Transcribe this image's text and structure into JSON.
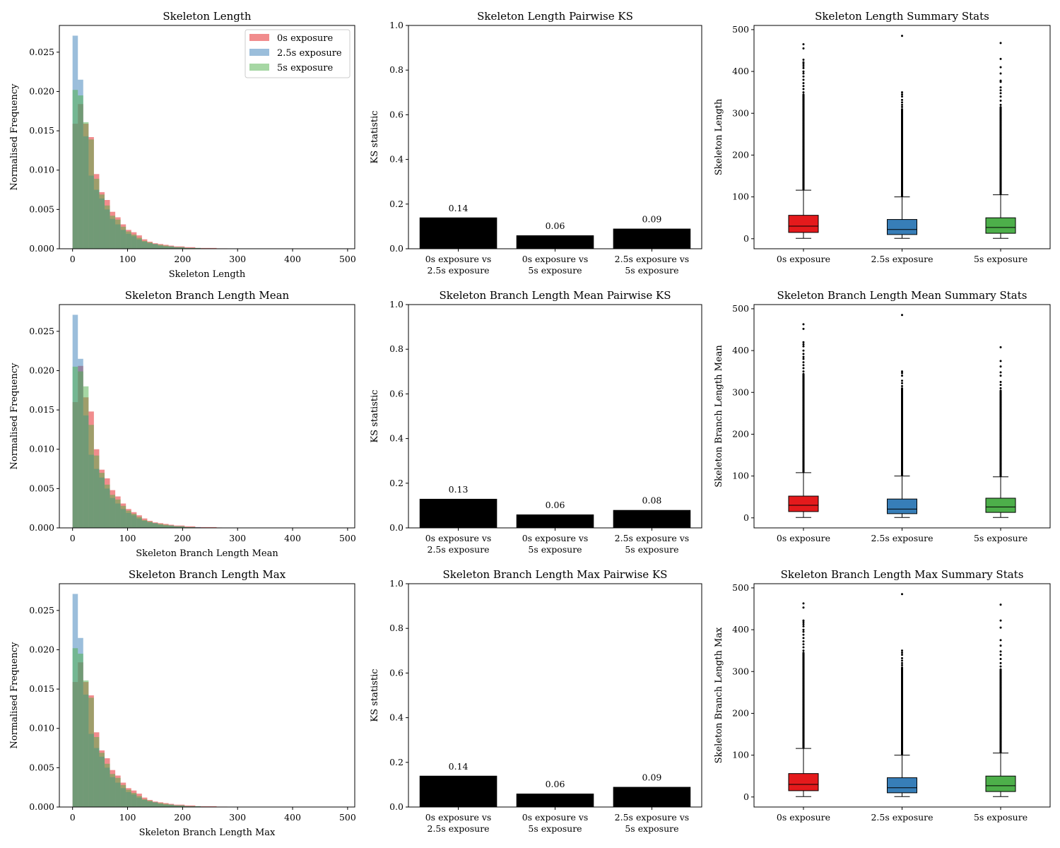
{
  "chart_data": [
    {
      "type": "histogram",
      "title": "Skeleton Length",
      "xlabel": "Skeleton Length",
      "ylabel": "Normalised Frequency",
      "xlim": [
        -24,
        513
      ],
      "ylim": [
        0,
        0.0284
      ],
      "xticks": [
        0,
        100,
        200,
        300,
        400,
        500
      ],
      "yticks": [
        "0.000",
        "0.005",
        "0.010",
        "0.015",
        "0.020",
        "0.025"
      ],
      "legend": "top-right",
      "bin_width": 9.7,
      "series": [
        {
          "name": "0s exposure",
          "color": "#e41a1c",
          "values": [
            0.0159,
            0.0184,
            0.0159,
            0.0142,
            0.0095,
            0.0072,
            0.0062,
            0.0047,
            0.004,
            0.0031,
            0.0024,
            0.0021,
            0.0017,
            0.0012,
            0.0009,
            0.0007,
            0.0006,
            0.0005,
            0.0004,
            0.0003,
            0.0003,
            0.0002,
            0.0002,
            0.0001,
            0.0001,
            0.0001,
            0.0001,
            5e-05,
            5e-05,
            3e-05
          ]
        },
        {
          "name": "2.5s exposure",
          "color": "#377eb8",
          "values": [
            0.0271,
            0.0215,
            0.0143,
            0.0093,
            0.0075,
            0.0064,
            0.005,
            0.0038,
            0.0031,
            0.0024,
            0.0019,
            0.0016,
            0.0012,
            0.0009,
            0.0007,
            0.0006,
            0.0004,
            0.0003,
            0.0003,
            0.0002,
            0.0002,
            0.0001,
            0.0001,
            0.0001,
            5e-05,
            5e-05,
            3e-05
          ]
        },
        {
          "name": "5s exposure",
          "color": "#4daf4a",
          "values": [
            0.0202,
            0.0195,
            0.0161,
            0.0139,
            0.0089,
            0.0069,
            0.0055,
            0.0042,
            0.0037,
            0.0028,
            0.0022,
            0.0018,
            0.0014,
            0.001,
            0.0008,
            0.0006,
            0.0005,
            0.0004,
            0.0003,
            0.0002,
            0.0002,
            0.0001,
            0.0001,
            0.0001,
            5e-05,
            3e-05
          ]
        }
      ]
    },
    {
      "type": "bar",
      "title": "Skeleton Length Pairwise KS",
      "ylabel": "KS statistic",
      "ylim": [
        0,
        1
      ],
      "yticks": [
        "0.0",
        "0.2",
        "0.4",
        "0.6",
        "0.8",
        "1.0"
      ],
      "categories": [
        "0s exposure vs\n2.5s exposure",
        "0s exposure vs\n5s exposure",
        "2.5s exposure vs\n5s exposure"
      ],
      "values": [
        0.14,
        0.06,
        0.09
      ],
      "labels": [
        "0.14",
        "0.06",
        "0.09"
      ],
      "color": "#000000"
    },
    {
      "type": "boxplot",
      "title": "Skeleton Length Summary Stats",
      "ylabel": "Skeleton Length",
      "ylim": [
        -24,
        510
      ],
      "yticks": [
        0,
        100,
        200,
        300,
        400,
        500
      ],
      "categories": [
        "0s exposure",
        "2.5s exposure",
        "5s exposure"
      ],
      "colors": [
        "#e41a1c",
        "#377eb8",
        "#4daf4a"
      ],
      "stats": [
        {
          "whislo": 1,
          "q1": 15,
          "med": 30,
          "q3": 56,
          "whishi": 116,
          "outliers_dense_to": 345,
          "outliers": [
            350,
            358,
            365,
            372,
            380,
            388,
            395,
            400,
            408,
            413,
            418,
            422,
            428,
            455,
            465
          ]
        },
        {
          "whislo": 1,
          "q1": 10,
          "med": 22,
          "q3": 46,
          "whishi": 100,
          "outliers_dense_to": 310,
          "outliers": [
            315,
            320,
            326,
            332,
            340,
            345,
            350,
            485
          ]
        },
        {
          "whislo": 1,
          "q1": 13,
          "med": 27,
          "q3": 50,
          "whishi": 105,
          "outliers_dense_to": 315,
          "outliers": [
            320,
            330,
            340,
            348,
            355,
            362,
            375,
            378,
            395,
            410,
            430,
            468
          ]
        }
      ]
    },
    {
      "type": "histogram",
      "title": "Skeleton Branch Length Mean",
      "xlabel": "Skeleton Branch Length Mean",
      "ylabel": "Normalised Frequency",
      "xlim": [
        -24,
        513
      ],
      "ylim": [
        0,
        0.0284
      ],
      "xticks": [
        0,
        100,
        200,
        300,
        400,
        500
      ],
      "yticks": [
        "0.000",
        "0.005",
        "0.010",
        "0.015",
        "0.020",
        "0.025"
      ],
      "bin_width": 9.7,
      "series": [
        {
          "name": "0s exposure",
          "color": "#e41a1c",
          "values": [
            0.016,
            0.0206,
            0.0166,
            0.0148,
            0.01,
            0.0074,
            0.0063,
            0.0048,
            0.004,
            0.0031,
            0.0024,
            0.002,
            0.0016,
            0.0012,
            0.0009,
            0.0007,
            0.0006,
            0.0005,
            0.0004,
            0.0003,
            0.0003,
            0.0002,
            0.0002,
            0.0001,
            0.0001,
            0.0001,
            0.0001,
            5e-05
          ]
        },
        {
          "name": "2.5s exposure",
          "color": "#377eb8",
          "values": [
            0.0271,
            0.0215,
            0.0143,
            0.0093,
            0.0075,
            0.0064,
            0.005,
            0.0038,
            0.0031,
            0.0024,
            0.0019,
            0.0016,
            0.0012,
            0.0009,
            0.0007,
            0.0006,
            0.0004,
            0.0003,
            0.0003,
            0.0002,
            0.0002,
            0.0001,
            0.0001,
            0.0001,
            5e-05
          ]
        },
        {
          "name": "5s exposure",
          "color": "#4daf4a",
          "values": [
            0.0205,
            0.0199,
            0.018,
            0.0131,
            0.0092,
            0.007,
            0.0055,
            0.0042,
            0.0036,
            0.0028,
            0.0022,
            0.0018,
            0.0014,
            0.001,
            0.0008,
            0.0006,
            0.0005,
            0.0004,
            0.0003,
            0.0002,
            0.0002,
            0.0001,
            0.0001,
            5e-05
          ]
        }
      ]
    },
    {
      "type": "bar",
      "title": "Skeleton Branch Length Mean Pairwise KS",
      "ylabel": "KS statistic",
      "ylim": [
        0,
        1
      ],
      "yticks": [
        "0.0",
        "0.2",
        "0.4",
        "0.6",
        "0.8",
        "1.0"
      ],
      "categories": [
        "0s exposure vs\n2.5s exposure",
        "0s exposure vs\n5s exposure",
        "2.5s exposure vs\n5s exposure"
      ],
      "values": [
        0.13,
        0.06,
        0.08
      ],
      "labels": [
        "0.13",
        "0.06",
        "0.08"
      ],
      "color": "#000000"
    },
    {
      "type": "boxplot",
      "title": "Skeleton Branch Length Mean Summary Stats",
      "ylabel": "Skeleton Branch Length Mean",
      "ylim": [
        -24,
        510
      ],
      "yticks": [
        0,
        100,
        200,
        300,
        400,
        500
      ],
      "categories": [
        "0s exposure",
        "2.5s exposure",
        "5s exposure"
      ],
      "colors": [
        "#e41a1c",
        "#377eb8",
        "#4daf4a"
      ],
      "stats": [
        {
          "whislo": 1,
          "q1": 15,
          "med": 30,
          "q3": 52,
          "whishi": 108,
          "outliers_dense_to": 345,
          "outliers": [
            350,
            358,
            365,
            372,
            380,
            385,
            392,
            400,
            410,
            415,
            420,
            452,
            463
          ]
        },
        {
          "whislo": 1,
          "q1": 10,
          "med": 21,
          "q3": 45,
          "whishi": 100,
          "outliers_dense_to": 310,
          "outliers": [
            315,
            322,
            328,
            340,
            346,
            350,
            485
          ]
        },
        {
          "whislo": 1,
          "q1": 13,
          "med": 26,
          "q3": 47,
          "whishi": 98,
          "outliers_dense_to": 305,
          "outliers": [
            310,
            318,
            325,
            340,
            348,
            362,
            375,
            408
          ]
        }
      ]
    },
    {
      "type": "histogram",
      "title": "Skeleton Branch Length Max",
      "xlabel": "Skeleton Branch Length Max",
      "ylabel": "Normalised Frequency",
      "xlim": [
        -24,
        513
      ],
      "ylim": [
        0,
        0.0284
      ],
      "xticks": [
        0,
        100,
        200,
        300,
        400,
        500
      ],
      "yticks": [
        "0.000",
        "0.005",
        "0.010",
        "0.015",
        "0.020",
        "0.025"
      ],
      "bin_width": 9.7,
      "series": [
        {
          "name": "0s exposure",
          "color": "#e41a1c",
          "values": [
            0.0159,
            0.0184,
            0.0159,
            0.0142,
            0.0095,
            0.0072,
            0.0062,
            0.0047,
            0.004,
            0.0031,
            0.0024,
            0.0021,
            0.0017,
            0.0012,
            0.0009,
            0.0007,
            0.0006,
            0.0005,
            0.0004,
            0.0003,
            0.0003,
            0.0002,
            0.0002,
            0.0001,
            0.0001,
            0.0001,
            0.0001,
            5e-05,
            5e-05,
            3e-05
          ]
        },
        {
          "name": "2.5s exposure",
          "color": "#377eb8",
          "values": [
            0.0271,
            0.0215,
            0.0143,
            0.0093,
            0.0075,
            0.0064,
            0.005,
            0.0038,
            0.0031,
            0.0024,
            0.0019,
            0.0016,
            0.0012,
            0.0009,
            0.0007,
            0.0006,
            0.0004,
            0.0003,
            0.0003,
            0.0002,
            0.0002,
            0.0001,
            0.0001,
            0.0001,
            5e-05,
            5e-05,
            3e-05
          ]
        },
        {
          "name": "5s exposure",
          "color": "#4daf4a",
          "values": [
            0.0202,
            0.0195,
            0.0161,
            0.0139,
            0.0089,
            0.0069,
            0.0055,
            0.0042,
            0.0037,
            0.0028,
            0.0022,
            0.0018,
            0.0014,
            0.001,
            0.0008,
            0.0006,
            0.0005,
            0.0004,
            0.0003,
            0.0002,
            0.0002,
            0.0001,
            0.0001,
            0.0001,
            5e-05,
            3e-05
          ]
        }
      ]
    },
    {
      "type": "bar",
      "title": "Skeleton Branch Length Max Pairwise KS",
      "ylabel": "KS statistic",
      "ylim": [
        0,
        1
      ],
      "yticks": [
        "0.0",
        "0.2",
        "0.4",
        "0.6",
        "0.8",
        "1.0"
      ],
      "categories": [
        "0s exposure vs\n2.5s exposure",
        "0s exposure vs\n5s exposure",
        "2.5s exposure vs\n5s exposure"
      ],
      "values": [
        0.14,
        0.06,
        0.09
      ],
      "labels": [
        "0.14",
        "0.06",
        "0.09"
      ],
      "color": "#000000"
    },
    {
      "type": "boxplot",
      "title": "Skeleton Branch Length Max Summary Stats",
      "ylabel": "Skeleton Branch Length Max",
      "ylim": [
        -24,
        510
      ],
      "yticks": [
        0,
        100,
        200,
        300,
        400,
        500
      ],
      "categories": [
        "0s exposure",
        "2.5s exposure",
        "5s exposure"
      ],
      "colors": [
        "#e41a1c",
        "#377eb8",
        "#4daf4a"
      ],
      "stats": [
        {
          "whislo": 1,
          "q1": 15,
          "med": 30,
          "q3": 56,
          "whishi": 116,
          "outliers_dense_to": 345,
          "outliers": [
            350,
            358,
            365,
            372,
            380,
            388,
            395,
            400,
            408,
            413,
            418,
            422,
            453,
            463
          ]
        },
        {
          "whislo": 1,
          "q1": 10,
          "med": 22,
          "q3": 46,
          "whishi": 100,
          "outliers_dense_to": 310,
          "outliers": [
            315,
            320,
            326,
            332,
            340,
            345,
            350,
            485
          ]
        },
        {
          "whislo": 1,
          "q1": 13,
          "med": 27,
          "q3": 50,
          "whishi": 105,
          "outliers_dense_to": 305,
          "outliers": [
            312,
            320,
            330,
            340,
            348,
            362,
            375,
            405,
            422,
            460
          ]
        }
      ]
    }
  ]
}
